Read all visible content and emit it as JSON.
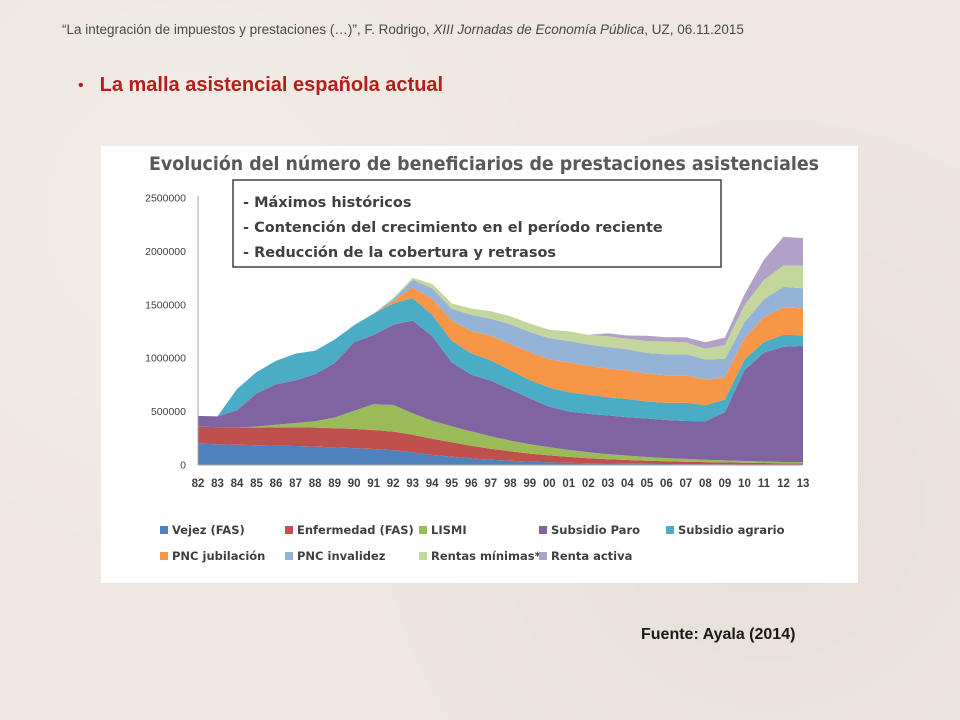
{
  "header": {
    "quote": "“La integración de impuestos y prestaciones (…)”, F. Rodrigo, ",
    "event": "XIII Jornadas de Economía Pública",
    "suffix": ", UZ, 06.11.2015"
  },
  "slide": {
    "bullet": "•",
    "title": "La malla asistencial española actual",
    "source": "Fuente: Ayala (2014)"
  },
  "chart_data": {
    "type": "area",
    "stacked": true,
    "title": "Evolución del número de beneficiarios de prestaciones asistenciales",
    "xlabel": "",
    "ylabel": "",
    "ylim": [
      0,
      2500000
    ],
    "yticks": [
      0,
      500000,
      1000000,
      1500000,
      2000000,
      2500000
    ],
    "ytick_labels": [
      "0",
      "500000",
      "1000000",
      "1500000",
      "2000000",
      "2500000"
    ],
    "x": [
      "82",
      "83",
      "84",
      "85",
      "86",
      "87",
      "88",
      "89",
      "90",
      "91",
      "92",
      "93",
      "94",
      "95",
      "96",
      "97",
      "98",
      "99",
      "00",
      "01",
      "02",
      "03",
      "04",
      "05",
      "06",
      "07",
      "08",
      "09",
      "10",
      "11",
      "12",
      "13"
    ],
    "grid": false,
    "legend_position": "bottom",
    "annotation_box": {
      "lines": [
        "- Máximos históricos",
        "- Contención del crecimiento en el período reciente",
        "- Reducción de la cobertura y retrasos"
      ]
    },
    "series": [
      {
        "name": "Vejez (FAS)",
        "color": "#4f81bd",
        "values": [
          200000,
          195000,
          190000,
          185000,
          182000,
          178000,
          172000,
          165000,
          158000,
          150000,
          138000,
          118000,
          95000,
          78000,
          62000,
          50000,
          40000,
          32000,
          26000,
          21000,
          17000,
          14000,
          12000,
          10000,
          9000,
          8000,
          7000,
          6000,
          5000,
          5000,
          4000,
          4000
        ]
      },
      {
        "name": "Enfermedad (FAS)",
        "color": "#c0504d",
        "values": [
          160000,
          160000,
          162000,
          165000,
          170000,
          175000,
          178000,
          180000,
          180000,
          178000,
          175000,
          165000,
          150000,
          135000,
          118000,
          102000,
          88000,
          75000,
          64000,
          55000,
          47000,
          40000,
          35000,
          30000,
          26000,
          23000,
          20000,
          18000,
          16000,
          14000,
          12000,
          11000
        ]
      },
      {
        "name": "LISMI",
        "color": "#9bbb59",
        "values": [
          0,
          0,
          0,
          10000,
          25000,
          40000,
          60000,
          100000,
          170000,
          240000,
          250000,
          200000,
          170000,
          150000,
          135000,
          118000,
          100000,
          88000,
          76000,
          65000,
          56000,
          48000,
          41000,
          35000,
          30000,
          26000,
          22000,
          19000,
          16000,
          14000,
          12000,
          10000
        ]
      },
      {
        "name": "Subsidio Paro",
        "color": "#8064a2",
        "values": [
          100000,
          100000,
          160000,
          310000,
          380000,
          400000,
          440000,
          510000,
          640000,
          650000,
          750000,
          870000,
          790000,
          600000,
          530000,
          520000,
          480000,
          430000,
          380000,
          360000,
          358000,
          362000,
          360000,
          360000,
          356000,
          355000,
          360000,
          450000,
          850000,
          1020000,
          1080000,
          1090000
        ]
      },
      {
        "name": "Subsidio agrario",
        "color": "#4bacc6",
        "values": [
          0,
          0,
          200000,
          200000,
          220000,
          250000,
          220000,
          220000,
          160000,
          200000,
          200000,
          210000,
          200000,
          200000,
          200000,
          190000,
          180000,
          170000,
          180000,
          180000,
          180000,
          170000,
          170000,
          160000,
          160000,
          170000,
          150000,
          120000,
          100000,
          100000,
          110000,
          100000
        ]
      },
      {
        "name": "PNC jubilación",
        "color": "#f79646",
        "values": [
          0,
          0,
          0,
          0,
          0,
          0,
          0,
          0,
          0,
          0,
          20000,
          100000,
          150000,
          190000,
          210000,
          230000,
          245000,
          260000,
          265000,
          280000,
          270000,
          270000,
          270000,
          260000,
          260000,
          260000,
          240000,
          210000,
          200000,
          230000,
          260000,
          250000
        ]
      },
      {
        "name": "PNC invalidez",
        "color": "#95b3d7",
        "values": [
          0,
          0,
          0,
          0,
          0,
          0,
          0,
          0,
          0,
          0,
          20000,
          70000,
          100000,
          110000,
          150000,
          160000,
          185000,
          190000,
          195000,
          200000,
          200000,
          200000,
          195000,
          195000,
          195000,
          195000,
          190000,
          170000,
          150000,
          170000,
          190000,
          190000
        ]
      },
      {
        "name": "Rentas mínimas*",
        "color": "#c3d69b",
        "values": [
          0,
          0,
          0,
          0,
          0,
          0,
          0,
          0,
          0,
          0,
          10000,
          20000,
          40000,
          50000,
          60000,
          70000,
          75000,
          80000,
          80000,
          90000,
          90000,
          100000,
          100000,
          110000,
          120000,
          110000,
          100000,
          130000,
          160000,
          180000,
          200000,
          210000
        ]
      },
      {
        "name": "Renta activa",
        "color": "#b2a1c7",
        "values": [
          0,
          0,
          0,
          0,
          0,
          0,
          0,
          0,
          0,
          0,
          0,
          0,
          0,
          0,
          0,
          0,
          0,
          0,
          0,
          0,
          0,
          30000,
          30000,
          50000,
          40000,
          50000,
          60000,
          70000,
          100000,
          190000,
          270000,
          260000
        ]
      }
    ]
  }
}
